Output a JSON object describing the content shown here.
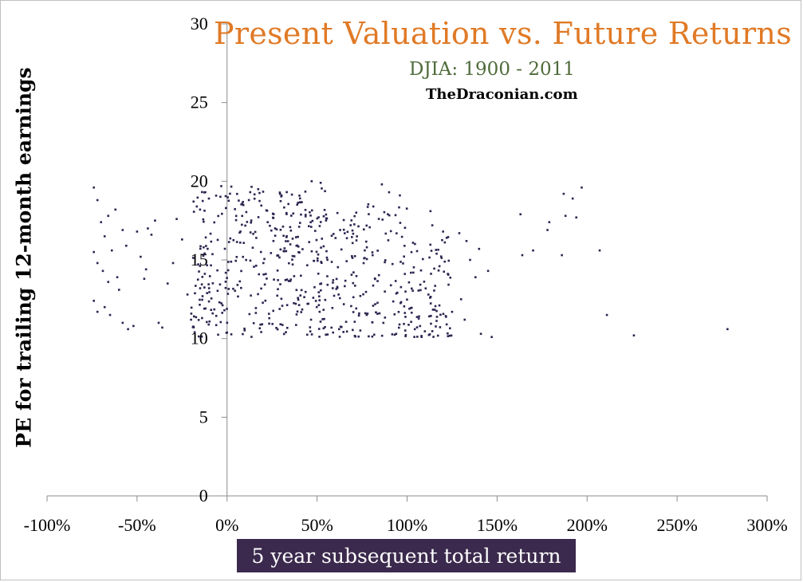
{
  "chart_data": {
    "type": "scatter",
    "title": "Present Valuation vs. Future Returns",
    "subtitle": "DJIA: 1900 - 2011",
    "source": "TheDraconian.com",
    "xlabel": "5 year subsequent total return",
    "ylabel": "PE for trailing 12-month earnings",
    "xlim": [
      -1.0,
      3.0
    ],
    "ylim": [
      0,
      30
    ],
    "x_ticks": [
      "-100%",
      "-50%",
      "0%",
      "50%",
      "100%",
      "150%",
      "200%",
      "250%",
      "300%"
    ],
    "y_ticks": [
      "0",
      "5",
      "10",
      "15",
      "20",
      "25",
      "30"
    ],
    "grid": false,
    "point_color": "#2b2550",
    "sample_seed": 20110,
    "points": [
      [
        -0.74,
        19.6
      ],
      [
        -0.72,
        18.8
      ],
      [
        -0.7,
        17.4
      ],
      [
        -0.68,
        16.5
      ],
      [
        -0.66,
        17.8
      ],
      [
        -0.64,
        15.6
      ],
      [
        -0.74,
        15.5
      ],
      [
        -0.72,
        14.8
      ],
      [
        -0.69,
        14.3
      ],
      [
        -0.66,
        13.6
      ],
      [
        -0.61,
        13.9
      ],
      [
        -0.6,
        13.1
      ],
      [
        -0.74,
        12.4
      ],
      [
        -0.72,
        11.7
      ],
      [
        -0.68,
        12.0
      ],
      [
        -0.65,
        11.5
      ],
      [
        -0.58,
        11.0
      ],
      [
        -0.55,
        10.6
      ],
      [
        -0.52,
        10.8
      ],
      [
        -0.48,
        15.2
      ],
      [
        -0.45,
        14.4
      ],
      [
        -0.44,
        17.0
      ],
      [
        -0.4,
        17.5
      ],
      [
        -0.38,
        11.0
      ],
      [
        -0.36,
        10.7
      ],
      [
        -0.33,
        13.5
      ],
      [
        -0.3,
        14.8
      ],
      [
        -0.28,
        17.6
      ],
      [
        -0.25,
        16.3
      ],
      [
        -0.22,
        12.8
      ],
      [
        -0.2,
        11.2
      ],
      [
        -0.18,
        10.4
      ],
      [
        -0.15,
        18.2
      ],
      [
        -0.13,
        15.8
      ],
      [
        -0.1,
        13.2
      ],
      [
        -0.08,
        11.6
      ],
      [
        -0.62,
        18.2
      ],
      [
        -0.58,
        16.9
      ],
      [
        -0.56,
        15.9
      ],
      [
        -0.5,
        16.8
      ],
      [
        -0.46,
        13.8
      ],
      [
        -0.42,
        16.6
      ],
      [
        0.47,
        20.0
      ],
      [
        0.52,
        19.9
      ],
      [
        0.86,
        19.8
      ],
      [
        0.9,
        19.3
      ],
      [
        0.96,
        19.1
      ],
      [
        1.13,
        18.1
      ],
      [
        1.14,
        17.2
      ],
      [
        1.2,
        16.8
      ],
      [
        1.29,
        16.7
      ],
      [
        1.33,
        16.2
      ],
      [
        1.4,
        15.7
      ],
      [
        1.45,
        14.3
      ],
      [
        1.47,
        10.1
      ],
      [
        1.35,
        15.0
      ],
      [
        1.38,
        13.9
      ],
      [
        1.63,
        17.9
      ],
      [
        1.64,
        15.3
      ],
      [
        1.7,
        15.6
      ],
      [
        1.78,
        16.9
      ],
      [
        1.79,
        17.4
      ],
      [
        1.86,
        15.3
      ],
      [
        1.87,
        19.2
      ],
      [
        1.88,
        17.8
      ],
      [
        1.92,
        18.9
      ],
      [
        1.94,
        17.7
      ],
      [
        1.97,
        19.6
      ],
      [
        2.07,
        15.6
      ],
      [
        2.11,
        11.5
      ],
      [
        2.26,
        10.2
      ],
      [
        2.78,
        10.6
      ],
      [
        1.22,
        10.9
      ],
      [
        1.25,
        11.7
      ],
      [
        1.3,
        12.5
      ],
      [
        1.41,
        10.3
      ],
      [
        1.32,
        11.2
      ],
      [
        1.18,
        14.6
      ]
    ]
  }
}
